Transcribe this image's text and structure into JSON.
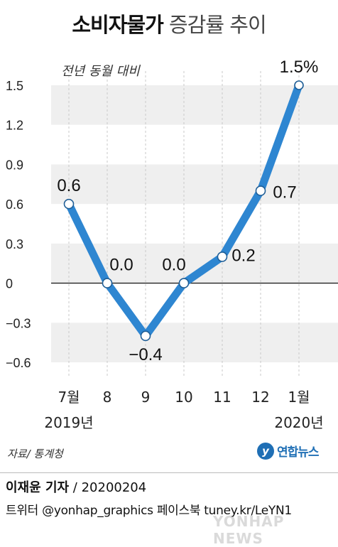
{
  "header": {
    "title_bold": "소비자물가",
    "title_light": "증감률 추이"
  },
  "chart_data": {
    "type": "line",
    "unit_label": "전년 동월 대비",
    "categories": [
      "7월",
      "8",
      "9",
      "10",
      "11",
      "12",
      "1월"
    ],
    "year_labels": [
      "2019년",
      "",
      "",
      "",
      "",
      "",
      "2020년"
    ],
    "values": [
      0.6,
      0.0,
      -0.4,
      0.0,
      0.2,
      0.7,
      1.5
    ],
    "data_labels": [
      "0.6",
      "0.0",
      "−0.4",
      "0.0",
      "0.2",
      "0.7",
      "1.5%"
    ],
    "yticks": [
      1.5,
      1.2,
      0.9,
      0.6,
      0.3,
      0,
      -0.3,
      -0.6
    ],
    "ytick_labels": [
      "1.5",
      "1.2",
      "0.9",
      "0.6",
      "0.3",
      "0",
      "−0.3",
      "−0.6"
    ],
    "ylim": [
      -0.6,
      1.5
    ],
    "line_color": "#2e86d1",
    "band_color": "#efefef"
  },
  "footer": {
    "source": "자료/ 통계청",
    "logo_text": "연합뉴스",
    "reporter": "이재윤 기자",
    "date": " / 20200204",
    "social": "트위터 @yonhap_graphics  페이스북 tuney.kr/LeYN1",
    "watermark": "YONHAP NEWS"
  }
}
